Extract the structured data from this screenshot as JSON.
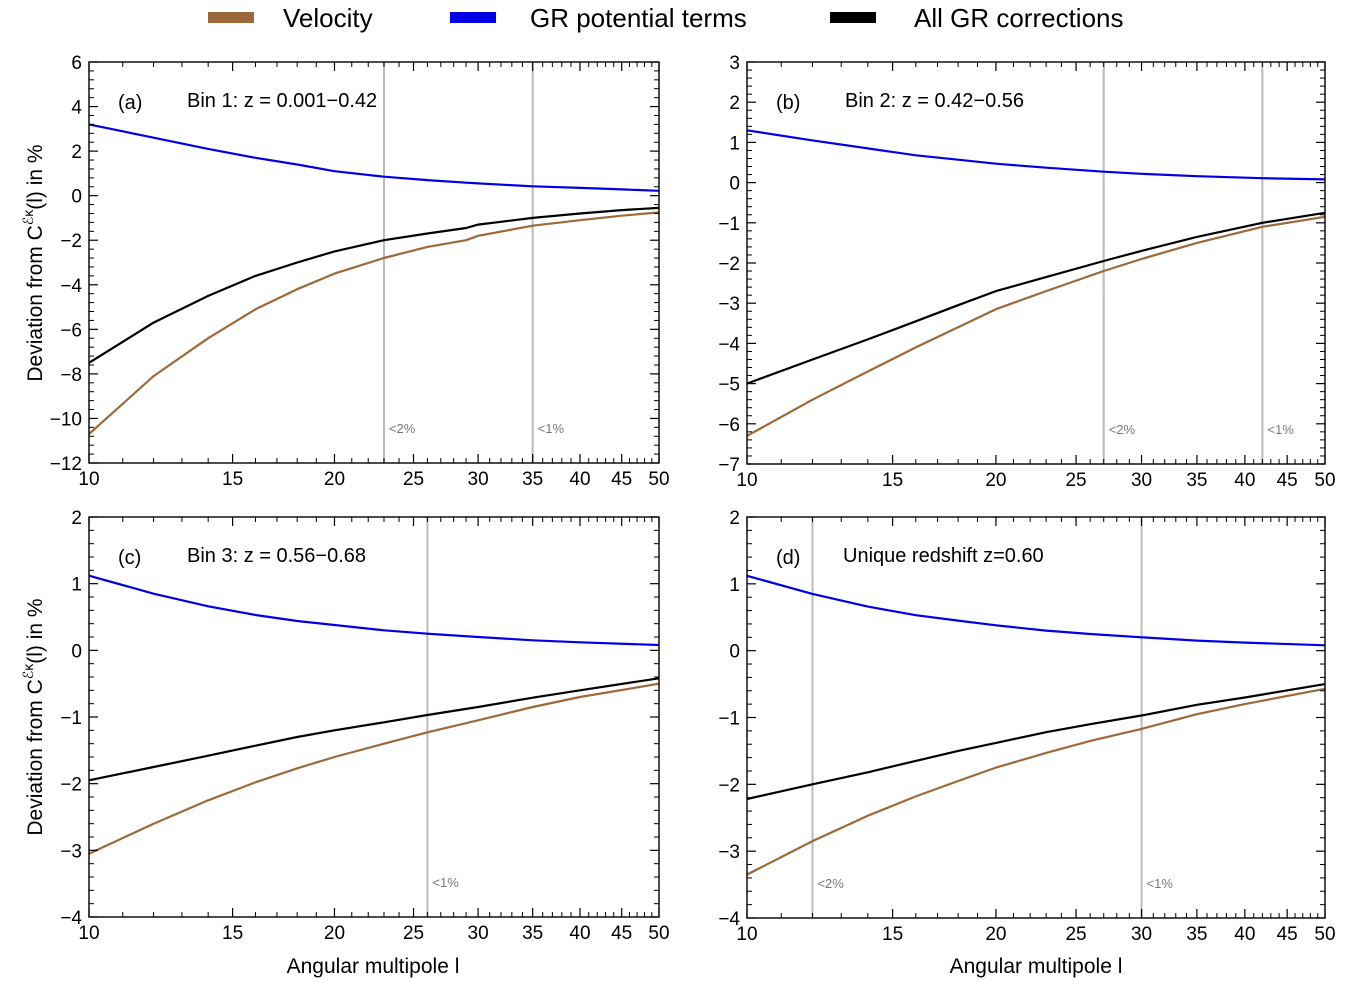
{
  "legend": {
    "placement": "top",
    "items": [
      {
        "label": "Velocity",
        "color": "#9C6A3A"
      },
      {
        "label": "GR potential terms",
        "color": "#0000E6"
      },
      {
        "label": "All GR corrections",
        "color": "#000000"
      }
    ]
  },
  "ylabel_pre": "Deviation from C",
  "ylabel_sup": "ℰκ",
  "ylabel_post": "(l) in %",
  "xlabel": "Angular multipole l",
  "vline_color": "#BBBBBB",
  "chart_data": [
    {
      "type": "line",
      "tag": "(a)",
      "title": "Bin 1:  z = 0.001−0.42",
      "xscale": "log",
      "xlim": [
        10,
        50
      ],
      "ylim": [
        -12,
        6
      ],
      "xticks": [
        10,
        15,
        20,
        25,
        30,
        35,
        40,
        45,
        50
      ],
      "yticks": [
        -12,
        -10,
        -8,
        -6,
        -4,
        -2,
        0,
        2,
        4,
        6
      ],
      "ytick_labels": [
        "−12",
        "−10",
        "−8",
        "−6",
        "−4",
        "−2",
        "0",
        "2",
        "4",
        "6"
      ],
      "vlines": [
        {
          "x": 23,
          "label": "<2%"
        },
        {
          "x": 35,
          "label": "<1%"
        }
      ],
      "x": [
        10,
        12,
        14,
        16,
        18,
        20,
        23,
        26,
        29,
        30,
        35,
        40,
        45,
        50
      ],
      "series": [
        {
          "name": "Velocity",
          "values": [
            -10.7,
            -8.1,
            -6.4,
            -5.1,
            -4.2,
            -3.5,
            -2.8,
            -2.3,
            -2.0,
            -1.8,
            -1.35,
            -1.1,
            -0.9,
            -0.75
          ]
        },
        {
          "name": "GR potential terms",
          "values": [
            3.2,
            2.6,
            2.1,
            1.7,
            1.4,
            1.1,
            0.85,
            0.7,
            0.58,
            0.55,
            0.42,
            0.35,
            0.28,
            0.22
          ]
        },
        {
          "name": "All GR corrections",
          "values": [
            -7.5,
            -5.7,
            -4.5,
            -3.6,
            -3.0,
            -2.5,
            -2.0,
            -1.7,
            -1.45,
            -1.3,
            -1.0,
            -0.8,
            -0.65,
            -0.55
          ]
        }
      ]
    },
    {
      "type": "line",
      "tag": "(b)",
      "title": "Bin 2:  z = 0.42−0.56",
      "xscale": "log",
      "xlim": [
        10,
        50
      ],
      "ylim": [
        -7,
        3
      ],
      "xticks": [
        10,
        15,
        20,
        25,
        30,
        35,
        40,
        45,
        50
      ],
      "yticks": [
        -7,
        -6,
        -5,
        -4,
        -3,
        -2,
        -1,
        0,
        1,
        2,
        3
      ],
      "ytick_labels": [
        "−7",
        "−6",
        "−5",
        "−4",
        "−3",
        "−2",
        "−1",
        "0",
        "1",
        "2",
        "3"
      ],
      "vlines": [
        {
          "x": 27,
          "label": "<2%"
        },
        {
          "x": 42,
          "label": "<1%"
        }
      ],
      "x": [
        10,
        12,
        14,
        16,
        18,
        20,
        23,
        27,
        30,
        35,
        42,
        50
      ],
      "series": [
        {
          "name": "Velocity",
          "values": [
            -6.3,
            -5.4,
            -4.7,
            -4.1,
            -3.6,
            -3.15,
            -2.7,
            -2.2,
            -1.9,
            -1.5,
            -1.1,
            -0.85
          ]
        },
        {
          "name": "GR potential terms",
          "values": [
            1.3,
            1.05,
            0.85,
            0.68,
            0.57,
            0.47,
            0.37,
            0.27,
            0.22,
            0.16,
            0.11,
            0.08
          ]
        },
        {
          "name": "All GR corrections",
          "values": [
            -5.0,
            -4.4,
            -3.9,
            -3.45,
            -3.05,
            -2.7,
            -2.35,
            -1.95,
            -1.7,
            -1.35,
            -1.0,
            -0.75
          ]
        }
      ]
    },
    {
      "type": "line",
      "tag": "(c)",
      "title": "Bin 3:  z = 0.56−0.68",
      "xscale": "log",
      "xlim": [
        10,
        50
      ],
      "ylim": [
        -4,
        2
      ],
      "xticks": [
        10,
        15,
        20,
        25,
        30,
        35,
        40,
        45,
        50
      ],
      "yticks": [
        -4,
        -3,
        -2,
        -1,
        0,
        1,
        2
      ],
      "ytick_labels": [
        "−4",
        "−3",
        "−2",
        "−1",
        "0",
        "1",
        "2"
      ],
      "vlines": [
        {
          "x": 26,
          "label": "<1%"
        }
      ],
      "x": [
        10,
        12,
        14,
        16,
        18,
        20,
        23,
        26,
        30,
        35,
        40,
        50
      ],
      "series": [
        {
          "name": "Velocity",
          "values": [
            -3.05,
            -2.6,
            -2.25,
            -1.98,
            -1.77,
            -1.6,
            -1.4,
            -1.23,
            -1.05,
            -0.85,
            -0.7,
            -0.5
          ]
        },
        {
          "name": "GR potential terms",
          "values": [
            1.12,
            0.85,
            0.66,
            0.53,
            0.44,
            0.38,
            0.3,
            0.25,
            0.2,
            0.15,
            0.12,
            0.08
          ]
        },
        {
          "name": "All GR corrections",
          "values": [
            -1.95,
            -1.75,
            -1.58,
            -1.43,
            -1.3,
            -1.2,
            -1.08,
            -0.97,
            -0.85,
            -0.71,
            -0.6,
            -0.42
          ]
        }
      ]
    },
    {
      "type": "line",
      "tag": "(d)",
      "title": "Unique redshift z=0.60",
      "xscale": "log",
      "xlim": [
        10,
        50
      ],
      "ylim": [
        -4,
        2
      ],
      "xticks": [
        10,
        15,
        20,
        25,
        30,
        35,
        40,
        45,
        50
      ],
      "yticks": [
        -4,
        -3,
        -2,
        -1,
        0,
        1,
        2
      ],
      "ytick_labels": [
        "−4",
        "−3",
        "−2",
        "−1",
        "0",
        "1",
        "2"
      ],
      "vlines": [
        {
          "x": 12,
          "label": "<2%"
        },
        {
          "x": 30,
          "label": "<1%"
        }
      ],
      "x": [
        10,
        12,
        14,
        16,
        18,
        20,
        23,
        26,
        30,
        35,
        40,
        50
      ],
      "series": [
        {
          "name": "Velocity",
          "values": [
            -3.35,
            -2.85,
            -2.47,
            -2.18,
            -1.95,
            -1.75,
            -1.53,
            -1.35,
            -1.17,
            -0.95,
            -0.8,
            -0.57
          ]
        },
        {
          "name": "GR potential terms",
          "values": [
            1.12,
            0.85,
            0.66,
            0.53,
            0.45,
            0.38,
            0.3,
            0.25,
            0.2,
            0.15,
            0.12,
            0.08
          ]
        },
        {
          "name": "All GR corrections",
          "values": [
            -2.22,
            -2.0,
            -1.82,
            -1.65,
            -1.5,
            -1.38,
            -1.22,
            -1.1,
            -0.97,
            -0.81,
            -0.7,
            -0.5
          ]
        }
      ]
    }
  ]
}
